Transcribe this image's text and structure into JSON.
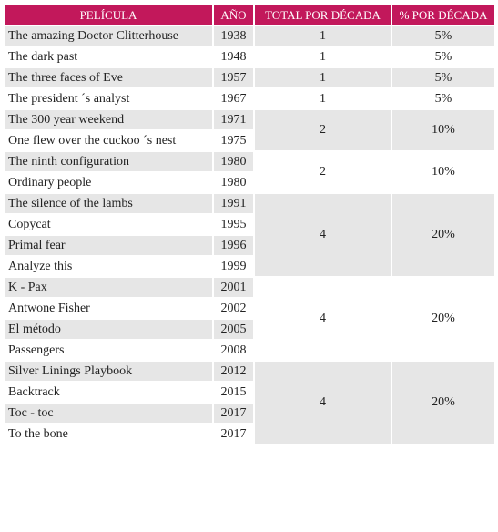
{
  "table": {
    "header": [
      "PELÍCULA",
      "AÑO",
      "TOTAL POR DÉCADA",
      "% POR DÉCADA"
    ],
    "groups": [
      {
        "films": [
          {
            "title": "The amazing Doctor Clitterhouse",
            "year": 1938
          }
        ],
        "total": 1,
        "percent": "5%"
      },
      {
        "films": [
          {
            "title": "The dark past",
            "year": 1948
          }
        ],
        "total": 1,
        "percent": "5%"
      },
      {
        "films": [
          {
            "title": "The three faces of Eve",
            "year": 1957
          }
        ],
        "total": 1,
        "percent": "5%"
      },
      {
        "films": [
          {
            "title": "The president ´s analyst",
            "year": 1967
          }
        ],
        "total": 1,
        "percent": "5%"
      },
      {
        "films": [
          {
            "title": "The 300 year weekend",
            "year": 1971
          },
          {
            "title": "One flew over the cuckoo ´s nest",
            "year": 1975
          }
        ],
        "total": 2,
        "percent": "10%"
      },
      {
        "films": [
          {
            "title": "The ninth configuration",
            "year": 1980
          },
          {
            "title": "Ordinary people",
            "year": 1980
          }
        ],
        "total": 2,
        "percent": "10%"
      },
      {
        "films": [
          {
            "title": "The silence of the lambs",
            "year": 1991
          },
          {
            "title": "Copycat",
            "year": 1995
          },
          {
            "title": "Primal fear",
            "year": 1996
          },
          {
            "title": "Analyze this",
            "year": 1999
          }
        ],
        "total": 4,
        "percent": "20%"
      },
      {
        "films": [
          {
            "title": "K - Pax",
            "year": 2001
          },
          {
            "title": "Antwone Fisher",
            "year": 2002
          },
          {
            "title": "El método",
            "year": 2005
          },
          {
            "title": "Passengers",
            "year": 2008
          }
        ],
        "total": 4,
        "percent": "20%"
      },
      {
        "films": [
          {
            "title": "Silver Linings Playbook",
            "year": 2012
          },
          {
            "title": "Backtrack",
            "year": 2015
          },
          {
            "title": "Toc - toc",
            "year": 2017
          },
          {
            "title": "To the bone",
            "year": 2017
          }
        ],
        "total": 4,
        "percent": "20%"
      }
    ]
  }
}
